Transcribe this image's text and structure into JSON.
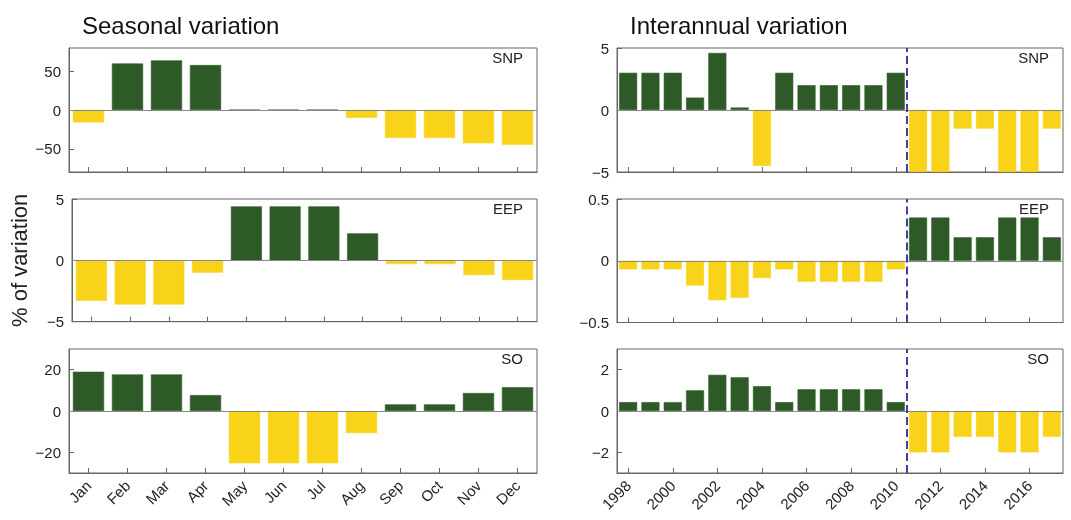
{
  "chart_data": [
    {
      "type": "bar",
      "title": "Seasonal variation",
      "annotations": [
        "SNP"
      ],
      "categories": [
        null,
        null,
        null,
        null,
        null,
        null,
        null,
        null,
        null,
        null,
        null,
        null
      ],
      "values": [
        -16,
        60,
        64,
        58,
        0,
        0,
        0,
        -10,
        -36,
        -36,
        -43,
        -45
      ],
      "colors": [
        "#f9d21a",
        "#2d5a27",
        "#2d5a27",
        "#2d5a27",
        "#2d5a27",
        "#2d5a27",
        "#2d5a27",
        "#f9d21a",
        "#f9d21a",
        "#f9d21a",
        "#f9d21a",
        "#f9d21a"
      ],
      "ylim": [
        -80,
        80
      ],
      "yticks": [
        -50,
        0,
        50
      ],
      "grid": false,
      "tick_labels": "y",
      "ref_lines": [
        {
          "axis": "y",
          "value": 0,
          "color": "#888888",
          "line_style": "solid"
        }
      ]
    },
    {
      "type": "bar",
      "title": "Interannual variation",
      "annotations": [
        "SNP"
      ],
      "x": [
        1998,
        1999,
        2000,
        2001,
        2002,
        2003,
        2004,
        2005,
        2006,
        2007,
        2008,
        2009,
        2010,
        2011,
        2012,
        2013,
        2014,
        2015,
        2016,
        2017
      ],
      "values": [
        3,
        3,
        3,
        1,
        4.6,
        0.2,
        -4.5,
        3,
        2,
        2,
        2,
        2,
        3,
        -5,
        -5,
        -1.5,
        -1.5,
        -5,
        -5,
        -1.5
      ],
      "colors": [
        "#2d5a27",
        "#2d5a27",
        "#2d5a27",
        "#2d5a27",
        "#2d5a27",
        "#2d5a27",
        "#f9d21a",
        "#2d5a27",
        "#2d5a27",
        "#2d5a27",
        "#2d5a27",
        "#2d5a27",
        "#2d5a27",
        "#f9d21a",
        "#f9d21a",
        "#f9d21a",
        "#f9d21a",
        "#f9d21a",
        "#f9d21a",
        "#f9d21a"
      ],
      "xlim": [
        1997.5,
        2017.5
      ],
      "xticks": [
        1998,
        2000,
        2002,
        2004,
        2006,
        2008,
        2010,
        2012,
        2014,
        2016
      ],
      "ylim": [
        -5,
        5
      ],
      "yticks": [
        -5,
        0,
        5
      ],
      "grid": false,
      "tick_labels": "y",
      "ref_lines": [
        {
          "axis": "y",
          "value": 0,
          "color": "#888888",
          "line_style": "solid"
        },
        {
          "axis": "x",
          "value": 2010.5,
          "color": "#4b3aa6",
          "line_style": "dashed"
        }
      ]
    },
    {
      "type": "bar",
      "ylabel": "% of variation",
      "annotations": [
        "EEP"
      ],
      "categories": [
        null,
        null,
        null,
        null,
        null,
        null,
        null,
        null,
        null,
        null,
        null,
        null
      ],
      "values": [
        -3.3,
        -3.6,
        -3.6,
        -1,
        4.4,
        4.4,
        4.4,
        2.2,
        -0.3,
        -0.3,
        -1.2,
        -1.6
      ],
      "colors": [
        "#f9d21a",
        "#f9d21a",
        "#f9d21a",
        "#f9d21a",
        "#2d5a27",
        "#2d5a27",
        "#2d5a27",
        "#2d5a27",
        "#f9d21a",
        "#f9d21a",
        "#f9d21a",
        "#f9d21a"
      ],
      "ylim": [
        -5,
        5
      ],
      "yticks": [
        -5,
        0,
        5
      ],
      "grid": false,
      "tick_labels": "y",
      "ref_lines": [
        {
          "axis": "y",
          "value": 0,
          "color": "#888888",
          "line_style": "solid"
        }
      ]
    },
    {
      "type": "bar",
      "annotations": [
        "EEP"
      ],
      "x": [
        1998,
        1999,
        2000,
        2001,
        2002,
        2003,
        2004,
        2005,
        2006,
        2007,
        2008,
        2009,
        2010,
        2011,
        2012,
        2013,
        2014,
        2015,
        2016,
        2017
      ],
      "values": [
        -0.07,
        -0.07,
        -0.07,
        -0.2,
        -0.32,
        -0.3,
        -0.14,
        -0.07,
        -0.17,
        -0.17,
        -0.17,
        -0.17,
        -0.07,
        0.35,
        0.35,
        0.19,
        0.19,
        0.35,
        0.35,
        0.19
      ],
      "colors": [
        "#f9d21a",
        "#f9d21a",
        "#f9d21a",
        "#f9d21a",
        "#f9d21a",
        "#f9d21a",
        "#f9d21a",
        "#f9d21a",
        "#f9d21a",
        "#f9d21a",
        "#f9d21a",
        "#f9d21a",
        "#f9d21a",
        "#2d5a27",
        "#2d5a27",
        "#2d5a27",
        "#2d5a27",
        "#2d5a27",
        "#2d5a27",
        "#2d5a27"
      ],
      "xlim": [
        1997.5,
        2017.5
      ],
      "xticks": [
        1998,
        2000,
        2002,
        2004,
        2006,
        2008,
        2010,
        2012,
        2014,
        2016
      ],
      "ylim": [
        -0.5,
        0.5
      ],
      "yticks": [
        -0.5,
        0,
        0.5
      ],
      "grid": false,
      "tick_labels": "y",
      "ref_lines": [
        {
          "axis": "y",
          "value": 0,
          "color": "#888888",
          "line_style": "solid"
        },
        {
          "axis": "x",
          "value": 2010.5,
          "color": "#4b3aa6",
          "line_style": "dashed"
        }
      ]
    },
    {
      "type": "bar",
      "annotations": [
        "SO"
      ],
      "categories": [
        "Jan",
        "Feb",
        "Mar",
        "Apr",
        "May",
        "Jun",
        "Jul",
        "Aug",
        "Sep",
        "Oct",
        "Nov",
        "Dec"
      ],
      "values": [
        19,
        17.7,
        17.7,
        7.7,
        -25.3,
        -25.3,
        -25.3,
        -10.7,
        3.2,
        3.2,
        8.7,
        11.5
      ],
      "colors": [
        "#2d5a27",
        "#2d5a27",
        "#2d5a27",
        "#2d5a27",
        "#f9d21a",
        "#f9d21a",
        "#f9d21a",
        "#f9d21a",
        "#2d5a27",
        "#2d5a27",
        "#2d5a27",
        "#2d5a27"
      ],
      "ylim": [
        -30,
        30
      ],
      "yticks": [
        -20,
        0,
        20
      ],
      "grid": false,
      "ref_lines": [
        {
          "axis": "y",
          "value": 0,
          "color": "#888888",
          "line_style": "solid"
        }
      ]
    },
    {
      "type": "bar",
      "annotations": [
        "SO"
      ],
      "x": [
        1998,
        1999,
        2000,
        2001,
        2002,
        2003,
        2004,
        2005,
        2006,
        2007,
        2008,
        2009,
        2010,
        2011,
        2012,
        2013,
        2014,
        2015,
        2016,
        2017
      ],
      "values": [
        0.43,
        0.43,
        0.43,
        1,
        1.75,
        1.63,
        1.2,
        0.43,
        1.05,
        1.05,
        1.05,
        1.05,
        0.43,
        -2,
        -2,
        -1.25,
        -1.25,
        -2,
        -2,
        -1.25
      ],
      "colors": [
        "#2d5a27",
        "#2d5a27",
        "#2d5a27",
        "#2d5a27",
        "#2d5a27",
        "#2d5a27",
        "#2d5a27",
        "#2d5a27",
        "#2d5a27",
        "#2d5a27",
        "#2d5a27",
        "#2d5a27",
        "#2d5a27",
        "#f9d21a",
        "#f9d21a",
        "#f9d21a",
        "#f9d21a",
        "#f9d21a",
        "#f9d21a",
        "#f9d21a"
      ],
      "xlim": [
        1997.5,
        2017.5
      ],
      "xticks": [
        1998,
        2000,
        2002,
        2004,
        2006,
        2008,
        2010,
        2012,
        2014,
        2016
      ],
      "ylim": [
        -3,
        3
      ],
      "yticks": [
        -2,
        0,
        2
      ],
      "grid": false,
      "ref_lines": [
        {
          "axis": "y",
          "value": 0,
          "color": "#888888",
          "line_style": "solid"
        },
        {
          "axis": "x",
          "value": 2010.5,
          "color": "#4b3aa6",
          "line_style": "dashed"
        }
      ]
    }
  ]
}
